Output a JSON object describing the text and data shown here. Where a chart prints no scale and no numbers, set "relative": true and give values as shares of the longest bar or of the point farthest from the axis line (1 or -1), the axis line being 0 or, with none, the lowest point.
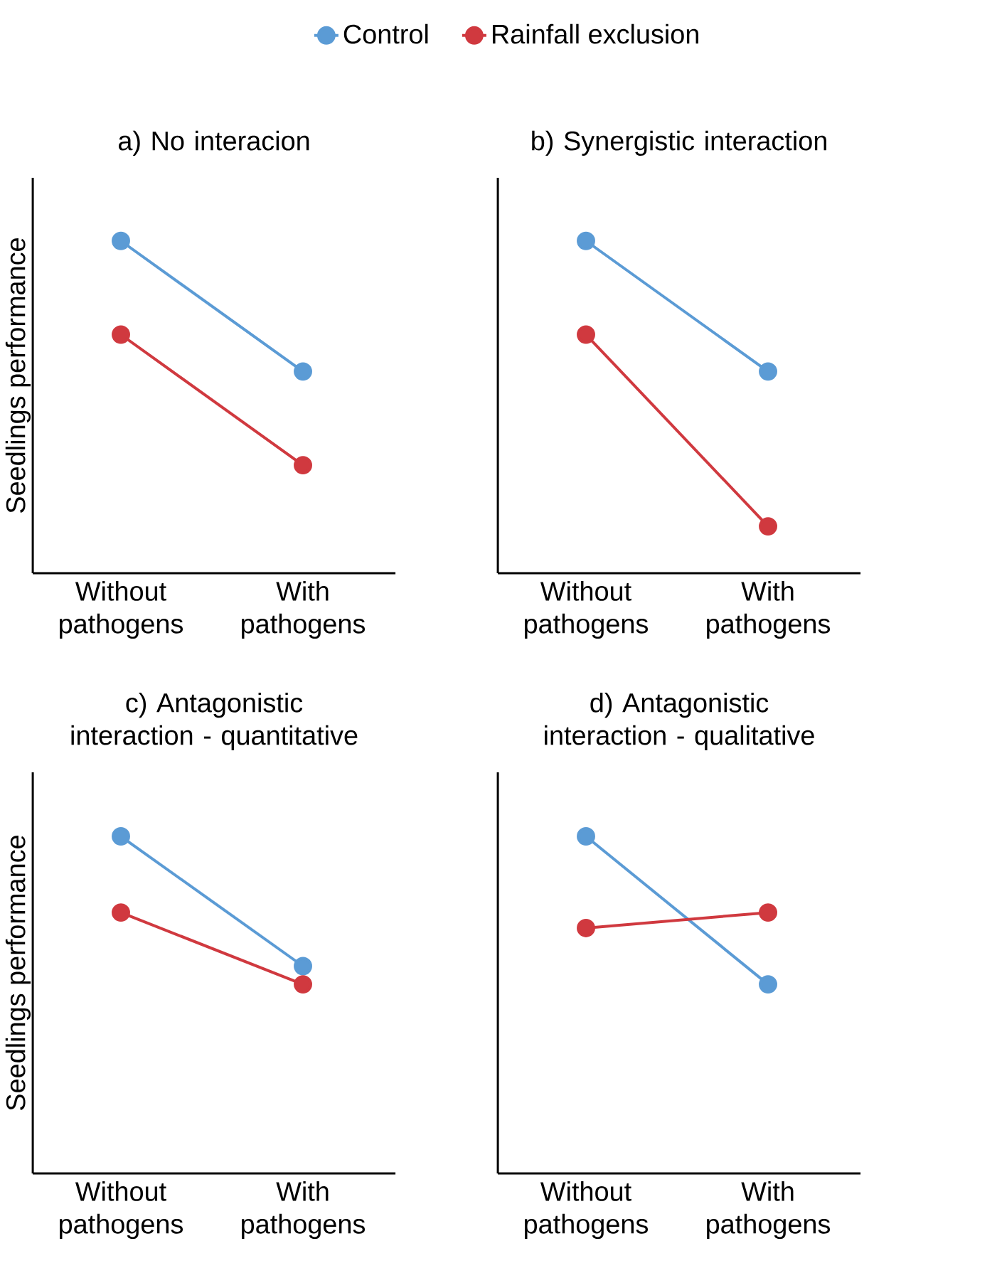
{
  "chart_data": [
    {
      "type": "line",
      "title": "a) No interacion",
      "ylabel": "Seedlings performance",
      "categories": [
        "Without pathogens",
        "With pathogens"
      ],
      "relative": true,
      "tick_labels": "x",
      "marker": "circle",
      "legend": "top",
      "series": [
        {
          "name": "Control",
          "color": "#5b9bd5",
          "values": [
            1,
            0.607
          ]
        },
        {
          "name": "Rainfall exclusion",
          "color": "#d0393f",
          "values": [
            0.718,
            0.325
          ]
        }
      ]
    },
    {
      "type": "line",
      "title": "b) Synergistic interaction",
      "categories": [
        "Without pathogens",
        "With pathogens"
      ],
      "relative": true,
      "tick_labels": "x",
      "marker": "circle",
      "series": [
        {
          "color": "#5b9bd5",
          "values": [
            1,
            0.607
          ]
        },
        {
          "color": "#d0393f",
          "values": [
            0.718,
            0.141
          ]
        }
      ]
    },
    {
      "type": "line",
      "title": "c) Antagonistic interaction - quantitative",
      "ylabel": "Seedlings performance",
      "categories": [
        "Without pathogens",
        "With pathogens"
      ],
      "relative": true,
      "tick_labels": "x",
      "marker": "circle",
      "series": [
        {
          "color": "#5b9bd5",
          "values": [
            1,
            0.615
          ]
        },
        {
          "color": "#d0393f",
          "values": [
            0.774,
            0.561
          ]
        }
      ]
    },
    {
      "type": "line",
      "title": "d) Antagonistic interaction - qualitative",
      "categories": [
        "Without pathogens",
        "With pathogens"
      ],
      "relative": true,
      "tick_labels": "x",
      "marker": "circle",
      "series": [
        {
          "color": "#5b9bd5",
          "values": [
            1,
            0.561
          ]
        },
        {
          "color": "#d0393f",
          "values": [
            0.728,
            0.774
          ]
        }
      ]
    }
  ]
}
